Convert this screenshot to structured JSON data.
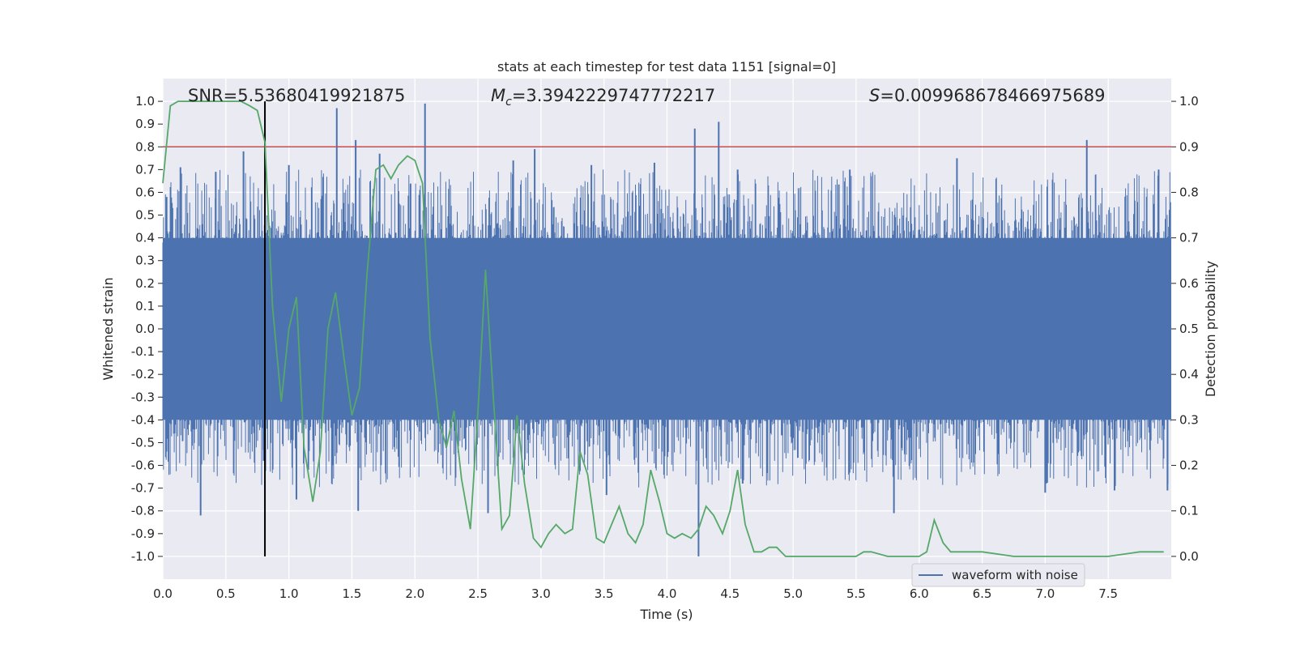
{
  "chart_data": {
    "type": "line",
    "title": "stats at each timestep for test data 1151 [signal=0]",
    "xlabel": "Time (s)",
    "ylabel_left": "Whitened strain",
    "ylabel_right": "Detection probability",
    "xlim": [
      0.0,
      8.0
    ],
    "ylim_left": [
      -1.1,
      1.1
    ],
    "ylim_right": [
      -0.05,
      1.05
    ],
    "x_ticks": [
      "0.0",
      "0.5",
      "1.0",
      "1.5",
      "2.0",
      "2.5",
      "3.0",
      "3.5",
      "4.0",
      "4.5",
      "5.0",
      "5.5",
      "6.0",
      "6.5",
      "7.0",
      "7.5"
    ],
    "y_left_ticks": [
      "1.0",
      "0.9",
      "0.8",
      "0.7",
      "0.6",
      "0.5",
      "0.4",
      "0.3",
      "0.2",
      "0.1",
      "0.0",
      "-0.1",
      "-0.2",
      "-0.3",
      "-0.4",
      "-0.5",
      "-0.6",
      "-0.7",
      "-0.8",
      "-0.9",
      "-1.0"
    ],
    "y_right_ticks": [
      "1.0",
      "0.9",
      "0.8",
      "0.7",
      "0.6",
      "0.5",
      "0.4",
      "0.3",
      "0.2",
      "0.1",
      "0.0"
    ],
    "grid": true,
    "annotations": {
      "snr": "SNR=5.53680419921875",
      "mc_symbol": "M",
      "mc_sub": "c",
      "mc_value": "=3.3942229747772217",
      "s_symbol": "S",
      "s_value": "=0.009968678466975689"
    },
    "threshold": {
      "value": 0.8,
      "axis": "left",
      "color": "#c44e52"
    },
    "vline": {
      "x": 0.81,
      "y_range": [
        -1.0,
        1.0
      ],
      "color": "#000000"
    },
    "legend": {
      "position": "lower-right",
      "entries": [
        "waveform with noise"
      ]
    },
    "series": [
      {
        "name": "waveform with noise",
        "axis": "left",
        "color": "#4c72b0",
        "style": "dense noise band",
        "band_low": -0.4,
        "band_high": 0.4,
        "spikes": [
          {
            "x": 0.03,
            "y": 0.58
          },
          {
            "x": 0.14,
            "y": 0.71
          },
          {
            "x": 0.3,
            "y": -0.82
          },
          {
            "x": 0.42,
            "y": 0.69
          },
          {
            "x": 0.64,
            "y": 0.78
          },
          {
            "x": 0.8,
            "y": -0.58
          },
          {
            "x": 1.0,
            "y": 0.72
          },
          {
            "x": 1.06,
            "y": -0.75
          },
          {
            "x": 1.38,
            "y": 0.97
          },
          {
            "x": 1.53,
            "y": 0.83
          },
          {
            "x": 1.55,
            "y": -0.8
          },
          {
            "x": 1.72,
            "y": 0.77
          },
          {
            "x": 2.08,
            "y": 0.99
          },
          {
            "x": 2.58,
            "y": -0.81
          },
          {
            "x": 2.78,
            "y": 0.74
          },
          {
            "x": 2.95,
            "y": 0.79
          },
          {
            "x": 3.4,
            "y": 0.72
          },
          {
            "x": 3.52,
            "y": -0.73
          },
          {
            "x": 3.9,
            "y": 0.73
          },
          {
            "x": 4.22,
            "y": 0.88
          },
          {
            "x": 4.25,
            "y": -1.0
          },
          {
            "x": 4.41,
            "y": 0.91
          },
          {
            "x": 4.56,
            "y": 0.7
          },
          {
            "x": 4.6,
            "y": -0.68
          },
          {
            "x": 5.45,
            "y": 0.7
          },
          {
            "x": 5.8,
            "y": -0.81
          },
          {
            "x": 6.3,
            "y": 0.75
          },
          {
            "x": 7.0,
            "y": -0.72
          },
          {
            "x": 7.33,
            "y": 0.83
          },
          {
            "x": 7.55,
            "y": -0.71
          },
          {
            "x": 7.9,
            "y": 0.7
          },
          {
            "x": 7.97,
            "y": -0.71
          }
        ]
      },
      {
        "name": "detection probability",
        "axis": "right",
        "color": "#55a868",
        "x": [
          0.0,
          0.06,
          0.12,
          0.19,
          0.25,
          0.31,
          0.37,
          0.44,
          0.5,
          0.56,
          0.62,
          0.69,
          0.75,
          0.81,
          0.87,
          0.94,
          1.0,
          1.06,
          1.12,
          1.19,
          1.25,
          1.31,
          1.37,
          1.44,
          1.5,
          1.56,
          1.62,
          1.69,
          1.75,
          1.81,
          1.87,
          1.94,
          2.0,
          2.06,
          2.12,
          2.19,
          2.25,
          2.31,
          2.37,
          2.44,
          2.5,
          2.56,
          2.62,
          2.69,
          2.75,
          2.81,
          2.87,
          2.94,
          3.0,
          3.06,
          3.12,
          3.19,
          3.25,
          3.31,
          3.37,
          3.44,
          3.5,
          3.56,
          3.62,
          3.69,
          3.75,
          3.81,
          3.87,
          3.94,
          4.0,
          4.06,
          4.12,
          4.19,
          4.25,
          4.31,
          4.37,
          4.44,
          4.5,
          4.56,
          4.62,
          4.69,
          4.75,
          4.81,
          4.87,
          4.94,
          5.0,
          5.25,
          5.5,
          5.56,
          5.62,
          5.75,
          5.87,
          5.94,
          6.0,
          6.06,
          6.12,
          6.19,
          6.25,
          6.5,
          6.75,
          7.0,
          7.25,
          7.5,
          7.75,
          7.87,
          7.94
        ],
        "y": [
          0.82,
          0.99,
          1.0,
          1.0,
          1.0,
          1.0,
          1.0,
          1.0,
          1.0,
          1.0,
          1.0,
          0.99,
          0.98,
          0.91,
          0.55,
          0.34,
          0.5,
          0.57,
          0.24,
          0.12,
          0.23,
          0.5,
          0.58,
          0.43,
          0.31,
          0.37,
          0.62,
          0.85,
          0.86,
          0.83,
          0.86,
          0.88,
          0.87,
          0.82,
          0.48,
          0.3,
          0.24,
          0.32,
          0.17,
          0.06,
          0.32,
          0.63,
          0.36,
          0.06,
          0.09,
          0.31,
          0.16,
          0.04,
          0.02,
          0.05,
          0.07,
          0.05,
          0.06,
          0.23,
          0.18,
          0.04,
          0.03,
          0.07,
          0.11,
          0.05,
          0.03,
          0.07,
          0.19,
          0.12,
          0.05,
          0.04,
          0.05,
          0.04,
          0.06,
          0.11,
          0.09,
          0.05,
          0.1,
          0.19,
          0.07,
          0.01,
          0.01,
          0.02,
          0.02,
          0.0,
          0.0,
          0.0,
          0.0,
          0.01,
          0.01,
          0.0,
          0.0,
          0.0,
          0.0,
          0.01,
          0.08,
          0.03,
          0.01,
          0.01,
          0.0,
          0.0,
          0.0,
          0.0,
          0.01,
          0.01,
          0.01
        ]
      }
    ]
  }
}
